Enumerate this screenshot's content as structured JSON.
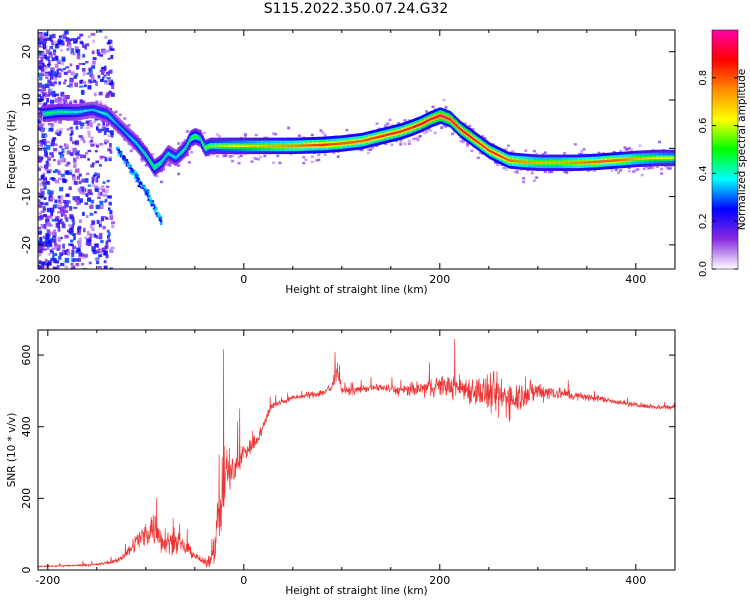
{
  "figure": {
    "title": "S115.2022.350.07.24.G32"
  },
  "chart_data": [
    {
      "type": "heatmap",
      "xlabel": "Height of straight line (km)",
      "ylabel": "Frequency (Hz)",
      "xlim": [
        -210,
        440
      ],
      "ylim": [
        -25,
        24.5
      ],
      "x_ticks": [
        -200,
        0,
        200,
        400
      ],
      "y_ticks": [
        -20,
        -10,
        0,
        10,
        20
      ],
      "colorbar": {
        "label": "Normalized spectral amplitude",
        "range": [
          0,
          1
        ],
        "ticks": [
          "0.0",
          "0.2",
          "0.4",
          "0.6",
          "0.8"
        ],
        "colors": [
          "#ffffff",
          "#8a2be2",
          "#0000ff",
          "#00ffff",
          "#00ff00",
          "#ffff00",
          "#ff8c00",
          "#ff0000",
          "#ff00aa"
        ]
      },
      "ridge": {
        "x": [
          -210,
          -190,
          -170,
          -155,
          -140,
          -130,
          -120,
          -110,
          -100,
          -92,
          -85,
          -78,
          -70,
          -60,
          -55,
          -50,
          -45,
          -40,
          -35,
          -20,
          0,
          20,
          50,
          80,
          100,
          120,
          140,
          160,
          170,
          180,
          190,
          200,
          210,
          220,
          230,
          240,
          250,
          260,
          270,
          280,
          300,
          320,
          340,
          360,
          380,
          400,
          420,
          440
        ],
        "y": [
          7,
          7.5,
          7.5,
          8,
          7,
          5,
          3,
          1,
          -1.5,
          -4,
          -3,
          -1,
          -2,
          0,
          2,
          2.5,
          2,
          0,
          0.5,
          0.5,
          0.5,
          0.5,
          0.5,
          0.7,
          1,
          1.5,
          2.5,
          3.5,
          4.2,
          5,
          6,
          6.8,
          6,
          4,
          2.5,
          1,
          -0.5,
          -1.5,
          -2.5,
          -2.7,
          -3,
          -3,
          -3,
          -2.8,
          -2.5,
          -2.2,
          -2,
          -2
        ],
        "amplitude": [
          0.45,
          0.45,
          0.4,
          0.35,
          0.4,
          0.35,
          0.35,
          0.4,
          0.45,
          0.5,
          0.45,
          0.4,
          0.4,
          0.45,
          0.5,
          0.5,
          0.45,
          0.55,
          0.55,
          0.6,
          0.65,
          0.7,
          0.75,
          0.85,
          0.8,
          0.8,
          0.85,
          0.85,
          0.85,
          0.9,
          0.9,
          0.95,
          0.95,
          0.9,
          0.9,
          0.85,
          0.85,
          0.85,
          0.8,
          0.75,
          0.7,
          0.7,
          0.75,
          0.8,
          0.8,
          0.7,
          0.65,
          0.6
        ]
      },
      "secondary_branch": {
        "x": [
          -130,
          -120,
          -110,
          -100,
          -92,
          -85
        ],
        "y": [
          0,
          -3,
          -6,
          -9,
          -12,
          -15
        ]
      }
    },
    {
      "type": "line",
      "xlabel": "Height of straight line (km)",
      "ylabel": "SNR (10 * v/v)",
      "xlim": [
        -210,
        440
      ],
      "ylim": [
        0,
        670
      ],
      "x_ticks": [
        -200,
        0,
        200,
        400
      ],
      "y_ticks": [
        0,
        200,
        400,
        600
      ],
      "series": [
        {
          "color": "#ee3333",
          "x": [
            -210,
            -180,
            -150,
            -130,
            -120,
            -110,
            -100,
            -95,
            -90,
            -85,
            -80,
            -75,
            -70,
            -65,
            -60,
            -55,
            -50,
            -45,
            -40,
            -35,
            -30,
            -25,
            -20,
            -15,
            -10,
            -5,
            0,
            10,
            20,
            25,
            30,
            40,
            50,
            60,
            70,
            80,
            90,
            95,
            100,
            110,
            120,
            140,
            160,
            180,
            200,
            220,
            240,
            250,
            260,
            270,
            280,
            300,
            320,
            340,
            360,
            380,
            400,
            420,
            440
          ],
          "y": [
            10,
            12,
            15,
            25,
            45,
            80,
            100,
            120,
            110,
            90,
            85,
            80,
            75,
            70,
            60,
            55,
            40,
            30,
            20,
            25,
            80,
            150,
            250,
            280,
            270,
            300,
            330,
            350,
            400,
            440,
            460,
            470,
            480,
            485,
            490,
            495,
            510,
            560,
            500,
            500,
            505,
            510,
            500,
            505,
            515,
            510,
            500,
            490,
            485,
            480,
            485,
            500,
            495,
            485,
            480,
            470,
            460,
            455,
            455
          ],
          "noise": [
            3,
            4,
            5,
            10,
            20,
            40,
            60,
            70,
            80,
            70,
            60,
            50,
            45,
            40,
            30,
            25,
            20,
            15,
            15,
            30,
            90,
            120,
            180,
            110,
            80,
            60,
            50,
            35,
            25,
            20,
            15,
            12,
            12,
            12,
            15,
            18,
            30,
            40,
            20,
            15,
            15,
            15,
            25,
            35,
            45,
            55,
            70,
            90,
            100,
            85,
            70,
            45,
            30,
            20,
            15,
            12,
            10,
            10,
            10
          ]
        }
      ]
    }
  ]
}
